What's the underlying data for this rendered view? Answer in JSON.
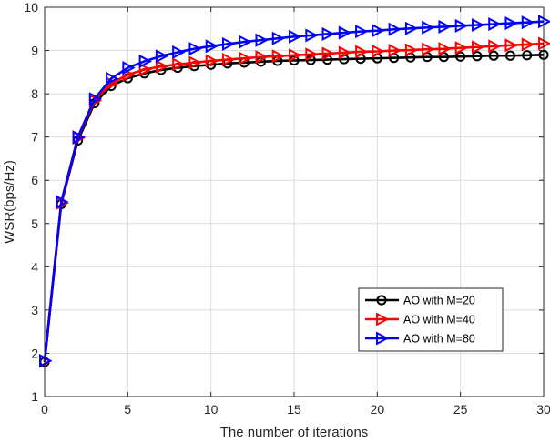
{
  "chart_data": {
    "type": "line",
    "title": "",
    "xlabel": "The number of iterations",
    "ylabel": "WSR(bps/Hz)",
    "xlim": [
      0,
      30
    ],
    "ylim": [
      1,
      10
    ],
    "xticks": [
      0,
      5,
      10,
      15,
      20,
      25,
      30
    ],
    "yticks": [
      1,
      2,
      3,
      4,
      5,
      6,
      7,
      8,
      9,
      10
    ],
    "grid": true,
    "legend_position": "lower-right",
    "x": [
      0,
      1,
      2,
      3,
      4,
      5,
      6,
      7,
      8,
      9,
      10,
      11,
      12,
      13,
      14,
      15,
      16,
      17,
      18,
      19,
      20,
      21,
      22,
      23,
      24,
      25,
      26,
      27,
      28,
      29,
      30
    ],
    "series": [
      {
        "name": "AO with M=20",
        "color": "#000000",
        "marker": "circle",
        "values": [
          1.8,
          5.45,
          6.92,
          7.78,
          8.18,
          8.36,
          8.47,
          8.55,
          8.6,
          8.64,
          8.67,
          8.7,
          8.72,
          8.74,
          8.76,
          8.77,
          8.78,
          8.79,
          8.8,
          8.81,
          8.82,
          8.83,
          8.84,
          8.85,
          8.85,
          8.86,
          8.87,
          8.88,
          8.88,
          8.89,
          8.9
        ]
      },
      {
        "name": "AO with M=40",
        "color": "#ff0000",
        "marker": "triangle-right",
        "values": [
          1.82,
          5.47,
          6.98,
          7.84,
          8.24,
          8.44,
          8.56,
          8.63,
          8.68,
          8.72,
          8.76,
          8.79,
          8.82,
          8.85,
          8.87,
          8.89,
          8.91,
          8.93,
          8.95,
          8.97,
          8.98,
          9.0,
          9.01,
          9.03,
          9.04,
          9.06,
          9.08,
          9.1,
          9.12,
          9.14,
          9.16
        ]
      },
      {
        "name": "AO with M=80",
        "color": "#0000ff",
        "marker": "triangle-right",
        "values": [
          1.83,
          5.5,
          7.0,
          7.88,
          8.35,
          8.6,
          8.75,
          8.87,
          8.96,
          9.04,
          9.1,
          9.15,
          9.2,
          9.24,
          9.28,
          9.32,
          9.35,
          9.38,
          9.41,
          9.44,
          9.46,
          9.49,
          9.51,
          9.53,
          9.55,
          9.57,
          9.59,
          9.61,
          9.63,
          9.65,
          9.67
        ]
      }
    ]
  }
}
